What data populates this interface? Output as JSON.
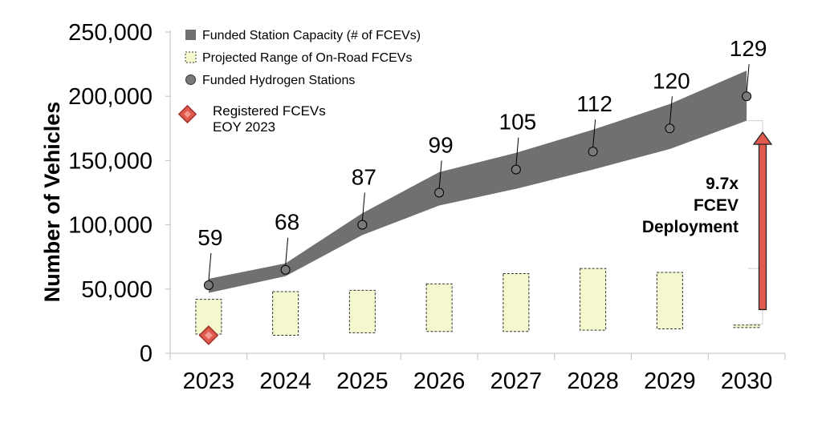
{
  "chart_data": {
    "type": "area",
    "ylabel": "Number of Vehicles",
    "ylim": [
      0,
      250000
    ],
    "yticks": [
      0,
      50000,
      100000,
      150000,
      200000,
      250000
    ],
    "ytick_labels": [
      "0",
      "50,000",
      "100,000",
      "150,000",
      "200,000",
      "250,000"
    ],
    "categories": [
      "2023",
      "2024",
      "2025",
      "2026",
      "2027",
      "2028",
      "2029",
      "2030"
    ],
    "legend": {
      "placement": "top-left",
      "entries": [
        "Funded Station Capacity (# of FCEVs)",
        "Projected Range of On-Road FCEVs",
        "Funded Hydrogen Stations"
      ]
    },
    "series": [
      {
        "name": "Funded Station Capacity (# of FCEVs)",
        "kind": "band",
        "color": "#707070",
        "low": [
          47000,
          60000,
          92000,
          115000,
          128000,
          143000,
          159000,
          181000
        ],
        "high": [
          58000,
          70000,
          109000,
          141000,
          156000,
          174000,
          194000,
          220000
        ]
      },
      {
        "name": "Projected Range of On-Road FCEVs",
        "kind": "range",
        "color": "#f5f7cd",
        "low": [
          15000,
          14000,
          16000,
          17000,
          17000,
          18000,
          19000,
          20000
        ],
        "high": [
          42000,
          48000,
          49000,
          54000,
          62000,
          66000,
          63000,
          22000
        ]
      },
      {
        "name": "Funded Hydrogen Stations",
        "kind": "points",
        "color": "#7a7a7a",
        "values": [
          53000,
          65000,
          100000,
          125000,
          143000,
          157000,
          175000,
          200000
        ],
        "labels": [
          "59",
          "68",
          "87",
          "99",
          "105",
          "112",
          "120",
          "129"
        ]
      }
    ],
    "marker": {
      "label_lines": [
        "Registered FCEVs",
        "EOY 2023"
      ],
      "category": "2023",
      "value": 14000,
      "color": "#e05a4e"
    },
    "annotation": {
      "lines": [
        "9.7x",
        "FCEV",
        "Deployment"
      ],
      "category": "2030",
      "from_value": 22000,
      "to_value": 172000,
      "color": "#e05a4e"
    },
    "grid": false
  }
}
